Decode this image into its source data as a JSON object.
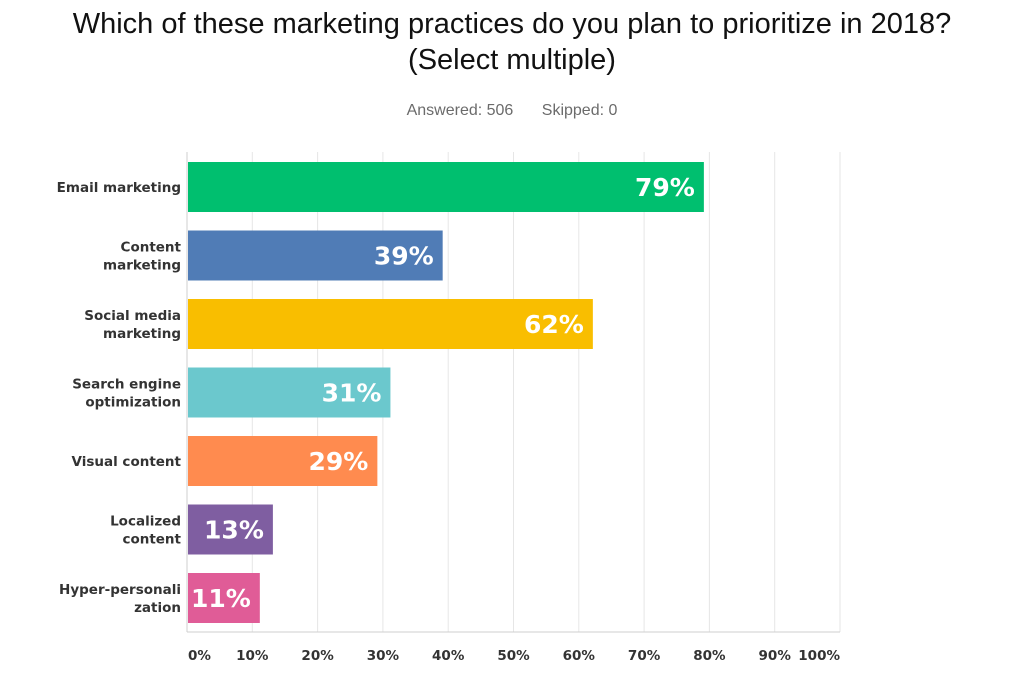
{
  "question": {
    "line1": "Which of these marketing practices do you plan to prioritize in 2018?",
    "line2": "(Select multiple)"
  },
  "summary": {
    "answered": "Answered: 506",
    "skipped": "Skipped: 0"
  },
  "chart_data": {
    "type": "bar",
    "orientation": "horizontal",
    "title": "Which of these marketing practices do you plan to prioritize in 2018? (Select multiple)",
    "categories": [
      [
        "Email marketing"
      ],
      [
        "Content",
        "marketing"
      ],
      [
        "Social media",
        "marketing"
      ],
      [
        "Search engine",
        "optimization"
      ],
      [
        "Visual content"
      ],
      [
        "Localized",
        "content"
      ],
      [
        "Hyper-personali",
        "zation"
      ]
    ],
    "values": [
      79,
      39,
      62,
      31,
      29,
      13,
      11
    ],
    "value_labels": [
      "79%",
      "39%",
      "62%",
      "31%",
      "29%",
      "13%",
      "11%"
    ],
    "colors": [
      "#00bf6f",
      "#507cb6",
      "#f9be00",
      "#6bc8cd",
      "#ff8b4f",
      "#7f5ea1",
      "#e05c97"
    ],
    "xlim": [
      0,
      100
    ],
    "xticks": [
      "0%",
      "10%",
      "20%",
      "30%",
      "40%",
      "50%",
      "60%",
      "70%",
      "80%",
      "90%",
      "100%"
    ],
    "grid": true,
    "legend": "none"
  }
}
